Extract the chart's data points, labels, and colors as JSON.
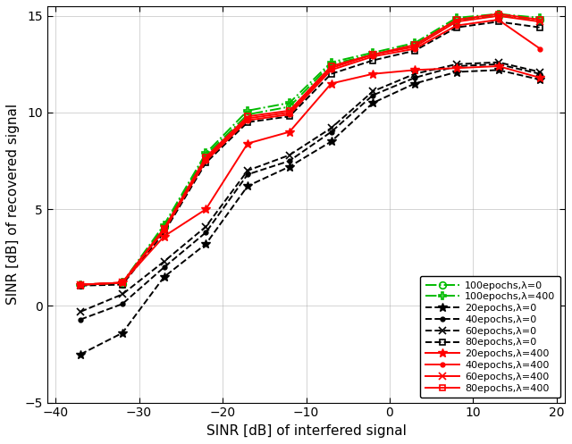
{
  "x": [
    -37,
    -32,
    -27,
    -22,
    -17,
    -12,
    -7,
    -2,
    3,
    8,
    13,
    18
  ],
  "series": [
    {
      "key": "100epochs_lam0",
      "y": [
        1.1,
        1.15,
        4.1,
        7.8,
        9.9,
        10.3,
        12.5,
        13.0,
        13.5,
        14.8,
        15.0,
        14.8
      ],
      "color": "#00BB00",
      "linestyle": "-.",
      "marker": "o",
      "label": "100epochs,λ=0",
      "linewidth": 1.4,
      "markersize": 5.5,
      "markerfacecolor": "none",
      "markeredgewidth": 1.2
    },
    {
      "key": "100epochs_lam400",
      "y": [
        1.1,
        1.2,
        4.2,
        7.9,
        10.1,
        10.5,
        12.6,
        13.1,
        13.6,
        14.9,
        15.1,
        14.9
      ],
      "color": "#00BB00",
      "linestyle": "-.",
      "marker": "P",
      "label": "100epochs,λ=400",
      "linewidth": 1.4,
      "markersize": 5.5,
      "markerfacecolor": "none",
      "markeredgewidth": 1.2
    },
    {
      "key": "20epochs_lam0",
      "y": [
        -2.5,
        -1.4,
        1.5,
        3.2,
        6.2,
        7.2,
        8.5,
        10.5,
        11.5,
        12.1,
        12.2,
        11.7
      ],
      "color": "#000000",
      "linestyle": "--",
      "marker": "*",
      "label": "20epochs,λ=0",
      "linewidth": 1.4,
      "markersize": 7,
      "markerfacecolor": "#000000",
      "markeredgewidth": 1.0
    },
    {
      "key": "40epochs_lam0",
      "y": [
        -0.7,
        0.1,
        2.0,
        3.8,
        6.8,
        7.5,
        9.0,
        10.9,
        11.8,
        12.4,
        12.5,
        12.0
      ],
      "color": "#000000",
      "linestyle": "--",
      "marker": ".",
      "label": "40epochs,λ=0",
      "linewidth": 1.4,
      "markersize": 7,
      "markerfacecolor": "#000000",
      "markeredgewidth": 1.0
    },
    {
      "key": "60epochs_lam0",
      "y": [
        -0.3,
        0.6,
        2.3,
        4.1,
        7.0,
        7.8,
        9.2,
        11.1,
        12.0,
        12.5,
        12.6,
        12.1
      ],
      "color": "#000000",
      "linestyle": "--",
      "marker": "x",
      "label": "60epochs,λ=0",
      "linewidth": 1.4,
      "markersize": 6,
      "markerfacecolor": "#000000",
      "markeredgewidth": 1.2
    },
    {
      "key": "80epochs_lam0",
      "y": [
        1.05,
        1.1,
        3.8,
        7.4,
        9.5,
        9.8,
        12.0,
        12.7,
        13.2,
        14.4,
        14.7,
        14.4
      ],
      "color": "#000000",
      "linestyle": "--",
      "marker": "s",
      "label": "80epochs,λ=0",
      "linewidth": 1.4,
      "markersize": 5,
      "markerfacecolor": "none",
      "markeredgewidth": 1.2
    },
    {
      "key": "20epochs_lam400",
      "y": [
        1.1,
        1.2,
        3.6,
        5.0,
        8.4,
        9.0,
        11.5,
        12.0,
        12.2,
        12.3,
        12.4,
        11.8
      ],
      "color": "#FF0000",
      "linestyle": "-",
      "marker": "*",
      "label": "20epochs,λ=400",
      "linewidth": 1.4,
      "markersize": 7,
      "markerfacecolor": "#FF0000",
      "markeredgewidth": 1.0
    },
    {
      "key": "40epochs_lam400",
      "y": [
        1.1,
        1.2,
        3.9,
        7.5,
        9.6,
        9.9,
        12.2,
        12.9,
        13.3,
        14.5,
        14.8,
        13.3
      ],
      "color": "#FF0000",
      "linestyle": "-",
      "marker": ".",
      "label": "40epochs,λ=400",
      "linewidth": 1.4,
      "markersize": 7,
      "markerfacecolor": "#FF0000",
      "markeredgewidth": 1.0
    },
    {
      "key": "60epochs_lam400",
      "y": [
        1.1,
        1.2,
        4.0,
        7.6,
        9.7,
        10.0,
        12.3,
        13.0,
        13.4,
        14.7,
        15.0,
        14.7
      ],
      "color": "#FF0000",
      "linestyle": "-",
      "marker": "x",
      "label": "60epochs,λ=400",
      "linewidth": 1.4,
      "markersize": 6,
      "markerfacecolor": "#FF0000",
      "markeredgewidth": 1.2
    },
    {
      "key": "80epochs_lam400",
      "y": [
        1.1,
        1.2,
        4.0,
        7.7,
        9.8,
        10.1,
        12.4,
        13.0,
        13.5,
        14.8,
        15.1,
        14.8
      ],
      "color": "#FF0000",
      "linestyle": "-",
      "marker": "s",
      "label": "80epochs,λ=400",
      "linewidth": 1.4,
      "markersize": 5,
      "markerfacecolor": "none",
      "markeredgewidth": 1.2
    }
  ],
  "xlabel": "SINR [dB] of interfered signal",
  "ylabel": "SINR [dB] of recovered signal",
  "xlim": [
    -41,
    21
  ],
  "ylim": [
    -5,
    15.5
  ],
  "xticks": [
    -40,
    -30,
    -20,
    -10,
    0,
    10,
    20
  ],
  "yticks": [
    -5,
    0,
    5,
    10,
    15
  ],
  "figsize": [
    6.4,
    4.97
  ],
  "dpi": 100
}
